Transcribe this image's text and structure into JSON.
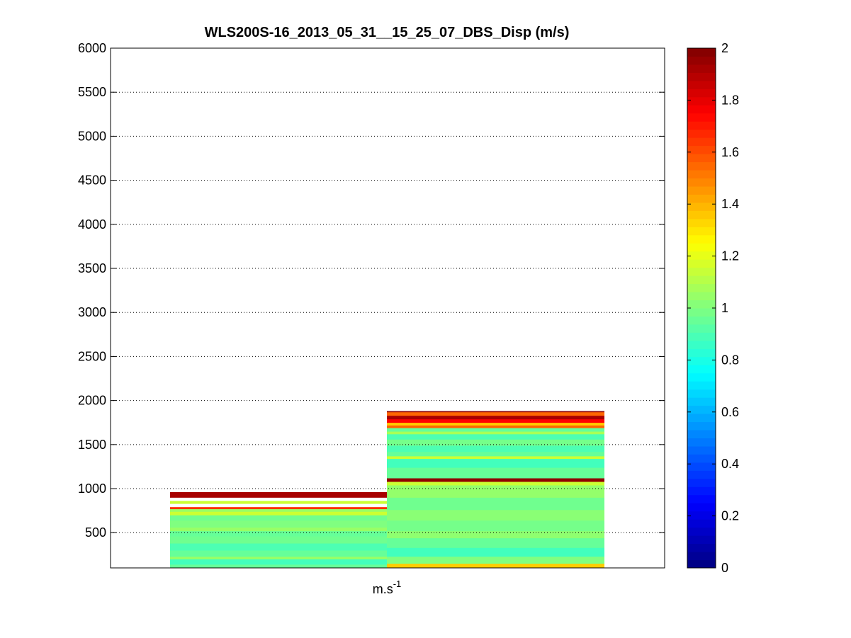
{
  "chart_data": {
    "type": "heatmap",
    "title": "WLS200S-16_2013_05_31__15_25_07_DBS_Disp (m/s)",
    "xlabel": "m.s",
    "xlabel_superscript": "-1",
    "ylabel": "",
    "ylim": [
      100,
      6000
    ],
    "yticks": [
      500,
      1000,
      1500,
      2000,
      2500,
      3000,
      3500,
      4000,
      4500,
      5000,
      5500,
      6000
    ],
    "grid": "y-dotted",
    "columns": [
      {
        "name": "",
        "bands": [
          {
            "y0": 100,
            "y1": 140,
            "value": 0.95
          },
          {
            "y0": 140,
            "y1": 200,
            "value": 0.88
          },
          {
            "y0": 200,
            "y1": 230,
            "value": 1.05
          },
          {
            "y0": 230,
            "y1": 300,
            "value": 0.95
          },
          {
            "y0": 300,
            "y1": 380,
            "value": 0.9
          },
          {
            "y0": 380,
            "y1": 460,
            "value": 0.97
          },
          {
            "y0": 460,
            "y1": 520,
            "value": 0.95
          },
          {
            "y0": 520,
            "y1": 560,
            "value": 1.05
          },
          {
            "y0": 560,
            "y1": 640,
            "value": 1.0
          },
          {
            "y0": 640,
            "y1": 700,
            "value": 0.97
          },
          {
            "y0": 700,
            "y1": 740,
            "value": 1.15
          },
          {
            "y0": 740,
            "y1": 770,
            "value": 1.05
          },
          {
            "y0": 770,
            "y1": 790,
            "value": 1.65
          },
          {
            "y0": 830,
            "y1": 860,
            "value": 1.15
          },
          {
            "y0": 900,
            "y1": 960,
            "value": 1.92
          }
        ]
      },
      {
        "name": "",
        "bands": [
          {
            "y0": 100,
            "y1": 150,
            "value": 1.35
          },
          {
            "y0": 150,
            "y1": 230,
            "value": 1.0
          },
          {
            "y0": 230,
            "y1": 330,
            "value": 0.88
          },
          {
            "y0": 330,
            "y1": 440,
            "value": 0.95
          },
          {
            "y0": 440,
            "y1": 520,
            "value": 1.03
          },
          {
            "y0": 520,
            "y1": 640,
            "value": 0.98
          },
          {
            "y0": 640,
            "y1": 760,
            "value": 1.02
          },
          {
            "y0": 760,
            "y1": 900,
            "value": 0.97
          },
          {
            "y0": 900,
            "y1": 1040,
            "value": 1.04
          },
          {
            "y0": 1040,
            "y1": 1080,
            "value": 1.15
          },
          {
            "y0": 1080,
            "y1": 1120,
            "value": 1.97
          },
          {
            "y0": 1120,
            "y1": 1240,
            "value": 0.95
          },
          {
            "y0": 1240,
            "y1": 1340,
            "value": 0.88
          },
          {
            "y0": 1340,
            "y1": 1370,
            "value": 1.15
          },
          {
            "y0": 1370,
            "y1": 1420,
            "value": 0.95
          },
          {
            "y0": 1420,
            "y1": 1490,
            "value": 0.9
          },
          {
            "y0": 1490,
            "y1": 1560,
            "value": 0.98
          },
          {
            "y0": 1560,
            "y1": 1620,
            "value": 0.9
          },
          {
            "y0": 1620,
            "y1": 1650,
            "value": 1.08
          },
          {
            "y0": 1650,
            "y1": 1690,
            "value": 0.95
          },
          {
            "y0": 1690,
            "y1": 1720,
            "value": 1.55
          },
          {
            "y0": 1720,
            "y1": 1750,
            "value": 1.35
          },
          {
            "y0": 1750,
            "y1": 1790,
            "value": 1.75
          },
          {
            "y0": 1790,
            "y1": 1830,
            "value": 1.92
          },
          {
            "y0": 1830,
            "y1": 1870,
            "value": 1.55
          },
          {
            "y0": 1870,
            "y1": 1880,
            "value": 1.98
          }
        ]
      }
    ],
    "colorbar": {
      "colormap": "jet",
      "clim": [
        0,
        2
      ],
      "ticks": [
        "0",
        "0.2",
        "0.4",
        "0.6",
        "0.8",
        "1",
        "1.2",
        "1.4",
        "1.6",
        "1.8",
        "2"
      ]
    }
  }
}
